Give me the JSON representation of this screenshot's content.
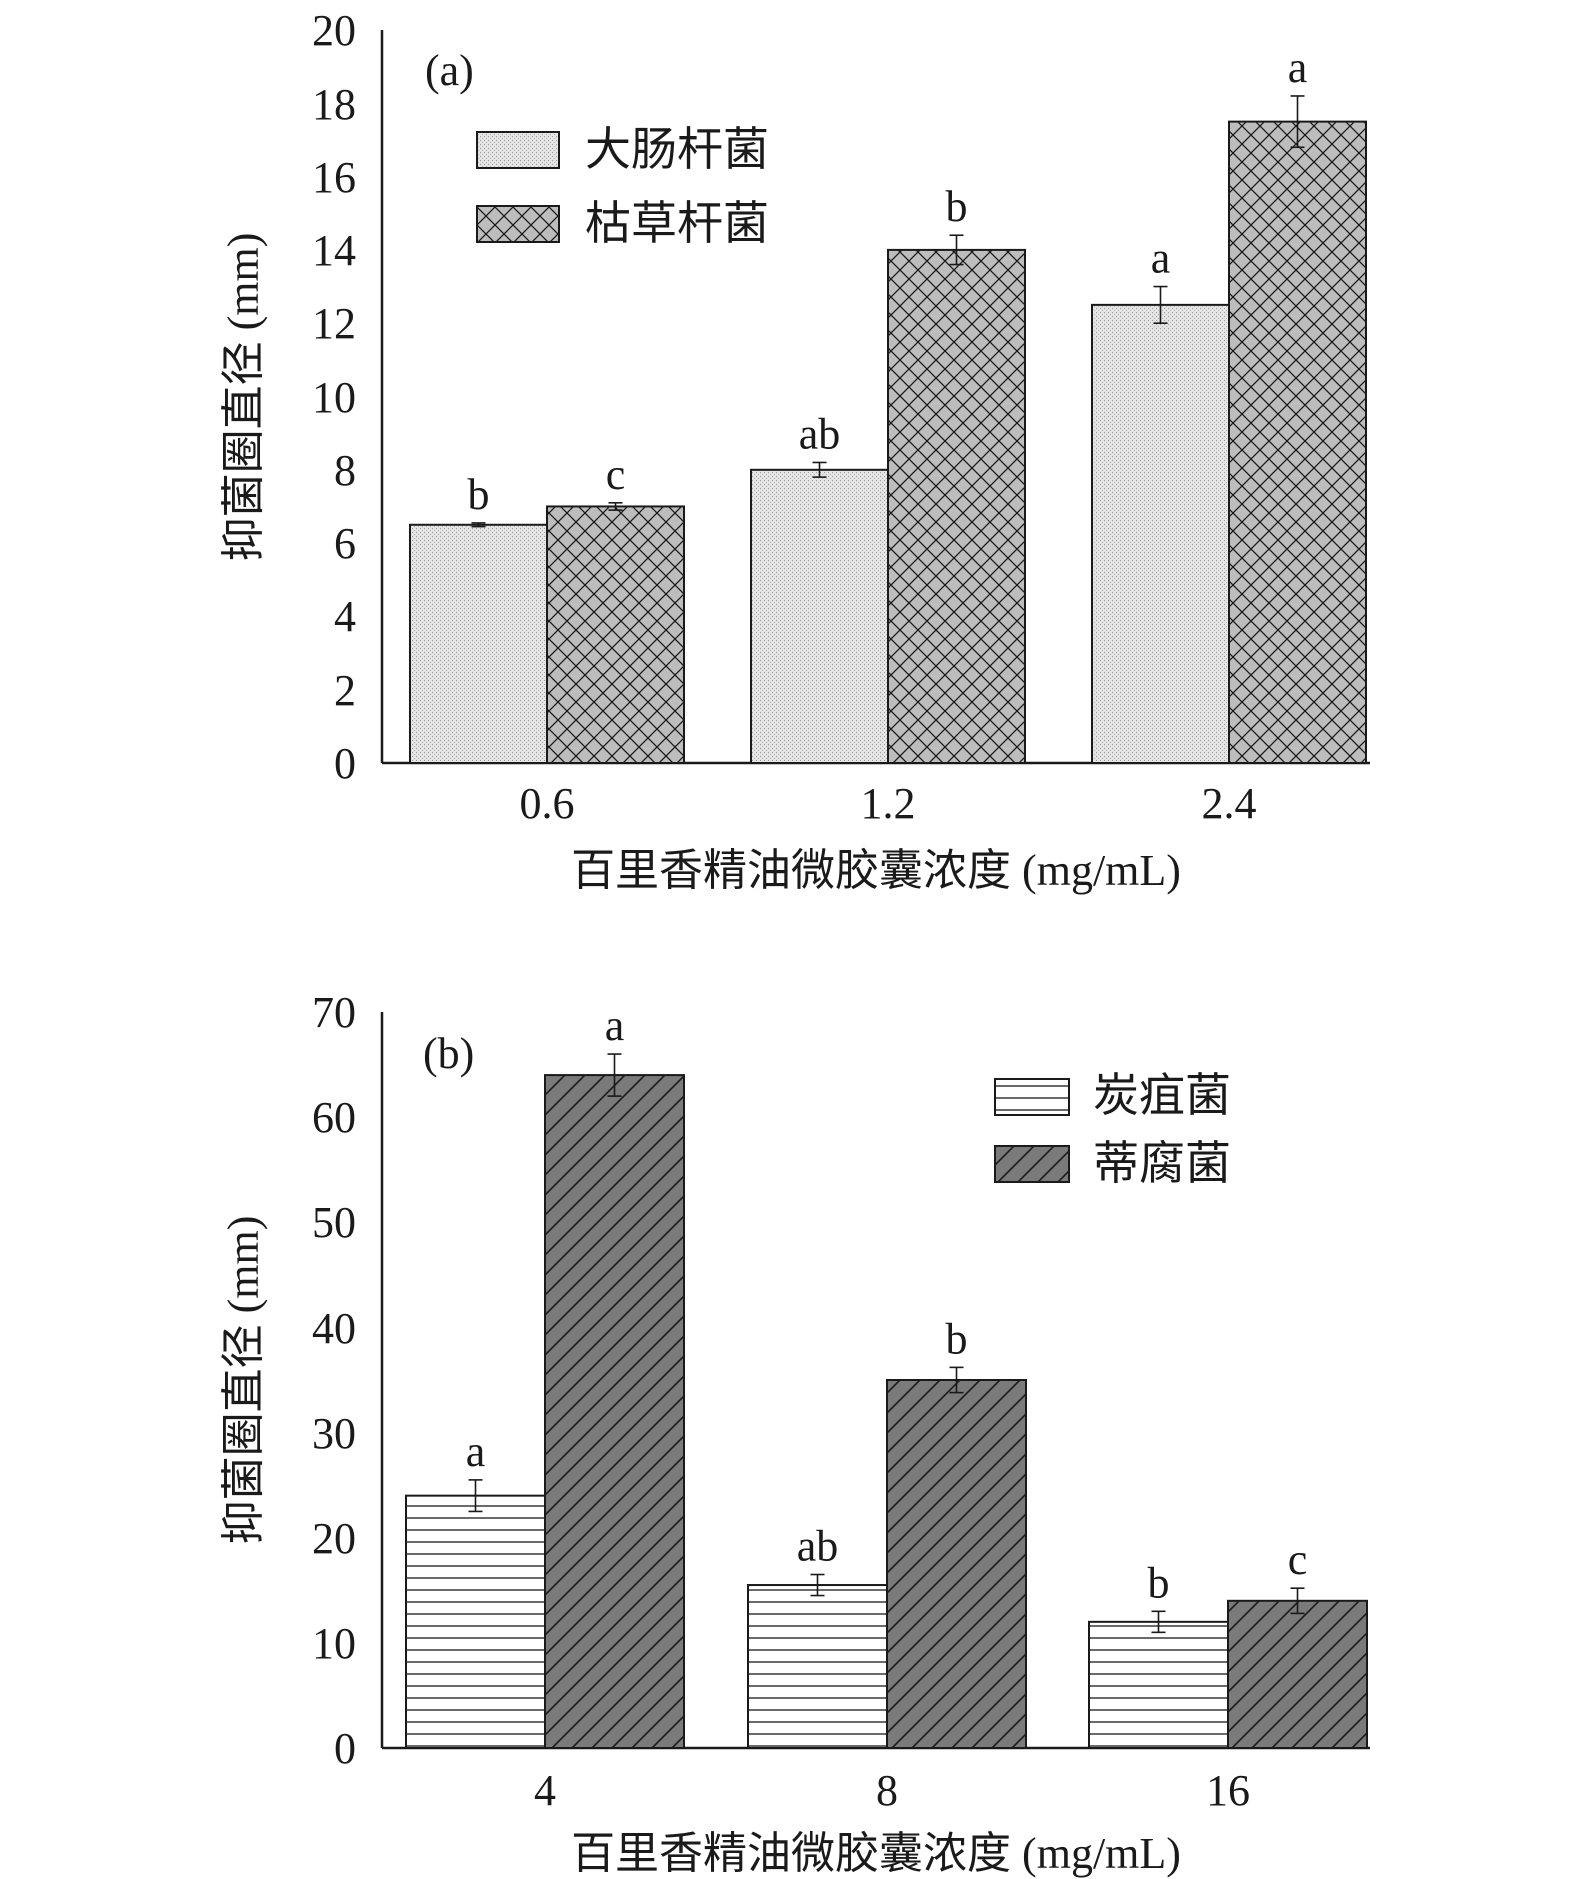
{
  "colors": {
    "ink": "#1a1a1a",
    "series_light_fill": "#e4e4e4",
    "series_dark_fill": "#bdbdbd",
    "series_stripe_fill": "#ffffff",
    "series_diag_fill": "#7a7a7a"
  },
  "chart_data": [
    {
      "type": "bar",
      "panel_label": "(a)",
      "categories": [
        "0.6",
        "1.2",
        "2.4"
      ],
      "xlabel": "百里香精油微胶囊浓度 (mg/mL)",
      "ylabel": "抑菌圈直径 (mm)",
      "ylim": [
        0,
        20
      ],
      "yticks": [
        "0",
        "2",
        "4",
        "6",
        "8",
        "10",
        "12",
        "14",
        "16",
        "18",
        "20"
      ],
      "grid": false,
      "legend_position": "top-left",
      "series": [
        {
          "name": "大肠杆菌",
          "pattern": "dots",
          "values": [
            6.5,
            8.0,
            12.5
          ],
          "errors": [
            0.05,
            0.2,
            0.5
          ],
          "labels": [
            "b",
            "ab",
            "a"
          ]
        },
        {
          "name": "枯草杆菌",
          "pattern": "crosshatch",
          "values": [
            7.0,
            14.0,
            17.5
          ],
          "errors": [
            0.1,
            0.4,
            0.7
          ],
          "labels": [
            "c",
            "b",
            "a"
          ]
        }
      ]
    },
    {
      "type": "bar",
      "panel_label": "(b)",
      "categories": [
        "4",
        "8",
        "16"
      ],
      "xlabel": "百里香精油微胶囊浓度 (mg/mL)",
      "ylabel": "抑菌圈直径 (mm)",
      "ylim": [
        0,
        70
      ],
      "yticks": [
        "0",
        "10",
        "20",
        "30",
        "40",
        "50",
        "60",
        "70"
      ],
      "grid": false,
      "legend_position": "top-right",
      "series": [
        {
          "name": "炭疽菌",
          "pattern": "horizontal",
          "values": [
            24,
            15.5,
            12
          ],
          "errors": [
            1.5,
            1.0,
            1.0
          ],
          "labels": [
            "a",
            "ab",
            "b"
          ]
        },
        {
          "name": "蒂腐菌",
          "pattern": "diagonal",
          "values": [
            64,
            35,
            14
          ],
          "errors": [
            2.0,
            1.2,
            1.2
          ],
          "labels": [
            "a",
            "b",
            "c"
          ]
        }
      ]
    }
  ]
}
